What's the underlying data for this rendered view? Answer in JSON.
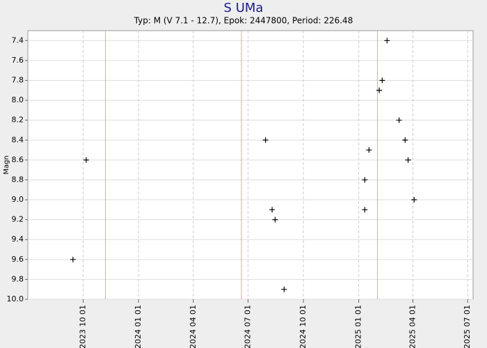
{
  "chart_data": {
    "type": "scatter",
    "title": "S UMa",
    "subtitle": "Typ: M (V 7.1 - 12.7), Epok: 2447800, Period: 226.48",
    "y_label": "Magn",
    "x": [
      "2023-09-14",
      "2023-10-06",
      "2024-07-30",
      "2024-08-10",
      "2024-08-15",
      "2024-08-30",
      "2025-01-11",
      "2025-01-11",
      "2025-01-18",
      "2025-02-04",
      "2025-02-09",
      "2025-02-17",
      "2025-03-09",
      "2025-03-19",
      "2025-03-24",
      "2025-04-03"
    ],
    "values": [
      9.6,
      8.6,
      8.4,
      9.1,
      9.2,
      9.9,
      8.8,
      9.1,
      8.5,
      7.9,
      7.8,
      7.4,
      8.2,
      8.4,
      8.6,
      9.0
    ],
    "color": "#000000",
    "maxima": [
      "2023-11-07",
      "2024-06-20",
      "2025-02-01"
    ],
    "maxima_color": "#f0a090",
    "xlim": [
      "2023-07-01",
      "2025-07-10"
    ],
    "xticks": [
      {
        "value": "2023-10-01",
        "label": "2023 10 01"
      },
      {
        "value": "2024-01-01",
        "label": "2024 01 01"
      },
      {
        "value": "2024-04-01",
        "label": "2024 04 01"
      },
      {
        "value": "2024-07-01",
        "label": "2024 07 01"
      },
      {
        "value": "2024-10-01",
        "label": "2024 10 01"
      },
      {
        "value": "2025-01-01",
        "label": "2025 01 01"
      },
      {
        "value": "2025-04-01",
        "label": "2025 04 01"
      },
      {
        "value": "2025-07-01",
        "label": "2025 07 01"
      }
    ],
    "ylim": [
      7.3,
      10.0
    ],
    "y_inverted": true,
    "yticks": [
      7.4,
      7.6,
      7.8,
      {
        "value": 8,
        "label": "8.0"
      },
      8.2,
      8.4,
      8.6,
      8.8,
      {
        "value": 9,
        "label": "9.0"
      },
      9.2,
      9.4,
      9.6,
      9.8,
      {
        "value": 10,
        "label": "10.0"
      }
    ],
    "grid": true
  }
}
